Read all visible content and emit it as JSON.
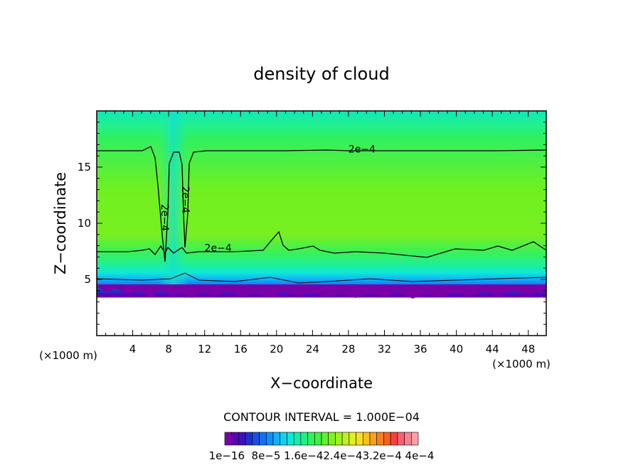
{
  "chart_data": {
    "type": "heatmap",
    "title": "density of cloud",
    "xlabel": "X−coordinate",
    "ylabel": "Z−coordinate",
    "x_unit_left": "(×1000 m)",
    "x_unit_right": "(×1000 m)",
    "xlim": [
      0,
      50
    ],
    "ylim": [
      0,
      20
    ],
    "x_ticks": [
      4,
      8,
      12,
      16,
      20,
      24,
      28,
      32,
      36,
      40,
      44,
      48
    ],
    "y_ticks": [
      5,
      10,
      15
    ],
    "contour_interval_text": "CONTOUR INTERVAL = 1.000E−04",
    "contour_labels": [
      {
        "text": "2e−4",
        "x": 29.5,
        "z": 16.3
      },
      {
        "text": "2e−4",
        "x": 13.5,
        "z": 7.5
      },
      {
        "text": "2e−4",
        "x": 7.2,
        "z": 10.5
      },
      {
        "text": "2e−4",
        "x": 9.5,
        "z": 12.1
      }
    ],
    "colorbar": {
      "tick_labels": [
        "1e−16",
        "8e−5",
        "1.6e−4",
        "2.4e−4",
        "3.2e−4",
        "4e−4"
      ],
      "label_row_text": "1e−16  8e−5 1.6e−42.4e−43.2e−4 4e−4",
      "colors": [
        "#7a00a8",
        "#5a00b4",
        "#3c10c0",
        "#2030d0",
        "#1a50e0",
        "#1070f0",
        "#0a90f8",
        "#10b0f8",
        "#10d0f0",
        "#10e8d0",
        "#10f0a8",
        "#20f080",
        "#30f060",
        "#40f040",
        "#60f030",
        "#80f020",
        "#a0f020",
        "#c0f020",
        "#e0f020",
        "#f8e020",
        "#f8c020",
        "#f8a020",
        "#f88020",
        "#f86020",
        "#f84040",
        "#f86070",
        "#f88090",
        "#f8a0a8"
      ]
    },
    "field_profile": {
      "cloud_base_z": 3.8,
      "low_contour_z": 7.5,
      "upper_contour_z": 16.5,
      "top_z": 20
    }
  }
}
